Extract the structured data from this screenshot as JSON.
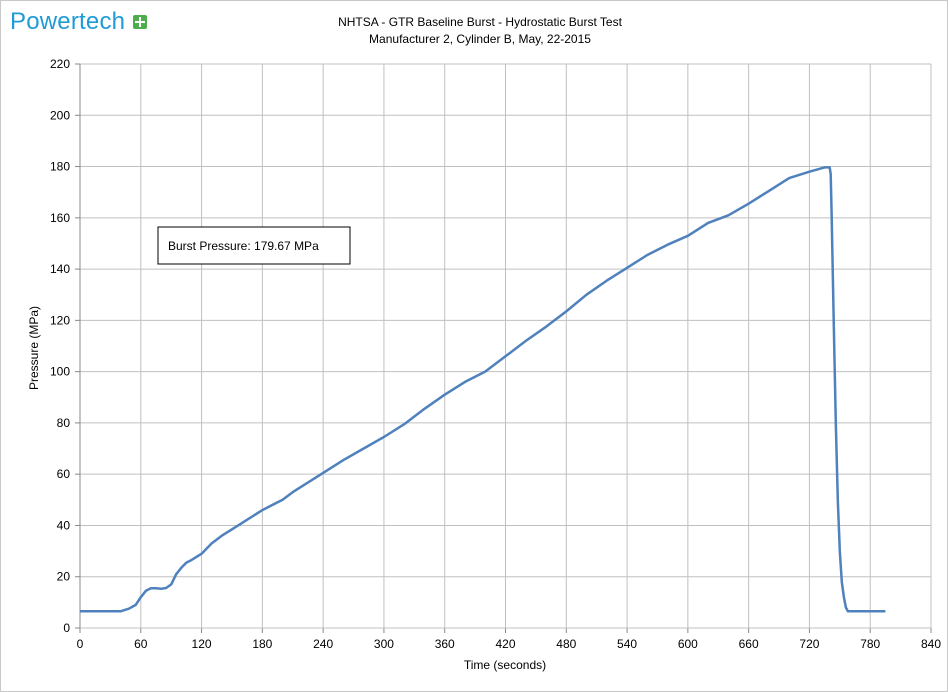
{
  "header": {
    "logo_text": "Powertech",
    "title_line1": "NHTSA - GTR Baseline Burst -  Hydrostatic Burst Test",
    "title_line2": "Manufacturer 2, Cylinder B,  May, 22-2015"
  },
  "colors": {
    "line": "#4f81bd",
    "grid": "#c0c0c0",
    "logo": "#1f9bd6"
  },
  "chart_data": {
    "type": "line",
    "title": "NHTSA - GTR Baseline Burst -  Hydrostatic Burst Test",
    "subtitle": "Manufacturer 2, Cylinder B,  May, 22-2015",
    "xlabel": "Time (seconds)",
    "ylabel": "Pressure (MPa)",
    "xlim": [
      0,
      840
    ],
    "ylim": [
      0,
      220
    ],
    "xticks": [
      0,
      60,
      120,
      180,
      240,
      300,
      360,
      420,
      480,
      540,
      600,
      660,
      720,
      780,
      840
    ],
    "yticks": [
      0,
      20,
      40,
      60,
      80,
      100,
      120,
      140,
      160,
      180,
      200,
      220
    ],
    "grid": true,
    "legend": "none",
    "annotation": "Burst Pressure:  179.67 MPa",
    "series": [
      {
        "x": [
          0,
          40,
          48,
          55,
          60,
          65,
          70,
          75,
          80,
          85,
          90,
          95,
          100,
          105,
          110,
          120,
          130,
          140,
          150,
          160,
          170,
          180,
          190,
          200,
          210,
          220,
          240,
          260,
          280,
          300,
          320,
          340,
          360,
          380,
          400,
          420,
          440,
          460,
          480,
          500,
          520,
          540,
          560,
          580,
          600,
          620,
          640,
          660,
          680,
          700,
          720,
          735,
          740,
          741,
          742,
          744,
          746,
          748,
          750,
          752,
          754,
          756,
          758,
          760,
          770,
          780,
          795
        ],
        "y": [
          6.5,
          6.5,
          7.5,
          9,
          12,
          14.5,
          15.5,
          15.5,
          15.3,
          15.6,
          17,
          21,
          23.5,
          25.5,
          26.5,
          29,
          33,
          36,
          38.5,
          41,
          43.5,
          46,
          48,
          50,
          53,
          55.5,
          60.5,
          65.5,
          70,
          74.5,
          79.5,
          85.5,
          91,
          96,
          100,
          106,
          112,
          117.5,
          123.5,
          130,
          135.5,
          140.5,
          145.5,
          149.5,
          153,
          158,
          161,
          165.5,
          170.5,
          175.5,
          178,
          179.67,
          179.67,
          177,
          160,
          120,
          80,
          50,
          30,
          18,
          12,
          8,
          6.5,
          6.5,
          6.5,
          6.5,
          6.5
        ]
      }
    ]
  }
}
